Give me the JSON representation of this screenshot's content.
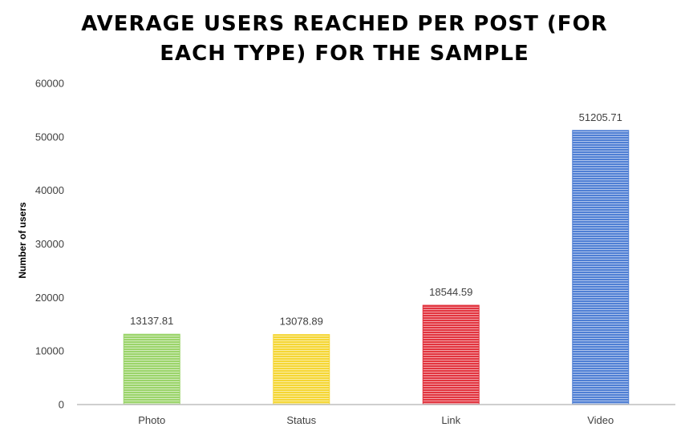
{
  "chart_data": {
    "type": "bar",
    "title": "AVERAGE USERS REACHED PER POST (FOR\nEACH TYPE) FOR THE SAMPLE",
    "xlabel": "",
    "ylabel": "Number of users",
    "ylim": [
      0,
      60000
    ],
    "yticks": [
      0,
      10000,
      20000,
      30000,
      40000,
      50000,
      60000
    ],
    "ytick_labels": [
      "0",
      "10000",
      "20000",
      "30000",
      "40000",
      "50000",
      "60000"
    ],
    "categories": [
      "Photo",
      "Status",
      "Link",
      "Video"
    ],
    "values": [
      13137.81,
      13078.89,
      18544.59,
      51205.71
    ],
    "data_labels": [
      "13137.81",
      "13078.89",
      "18544.59",
      "51205.71"
    ],
    "colors": [
      "#9BD46A",
      "#F5D634",
      "#E2343F",
      "#4F7FD4"
    ],
    "stripe_color": "#FFFFFF",
    "grid": false,
    "legend": "none"
  }
}
